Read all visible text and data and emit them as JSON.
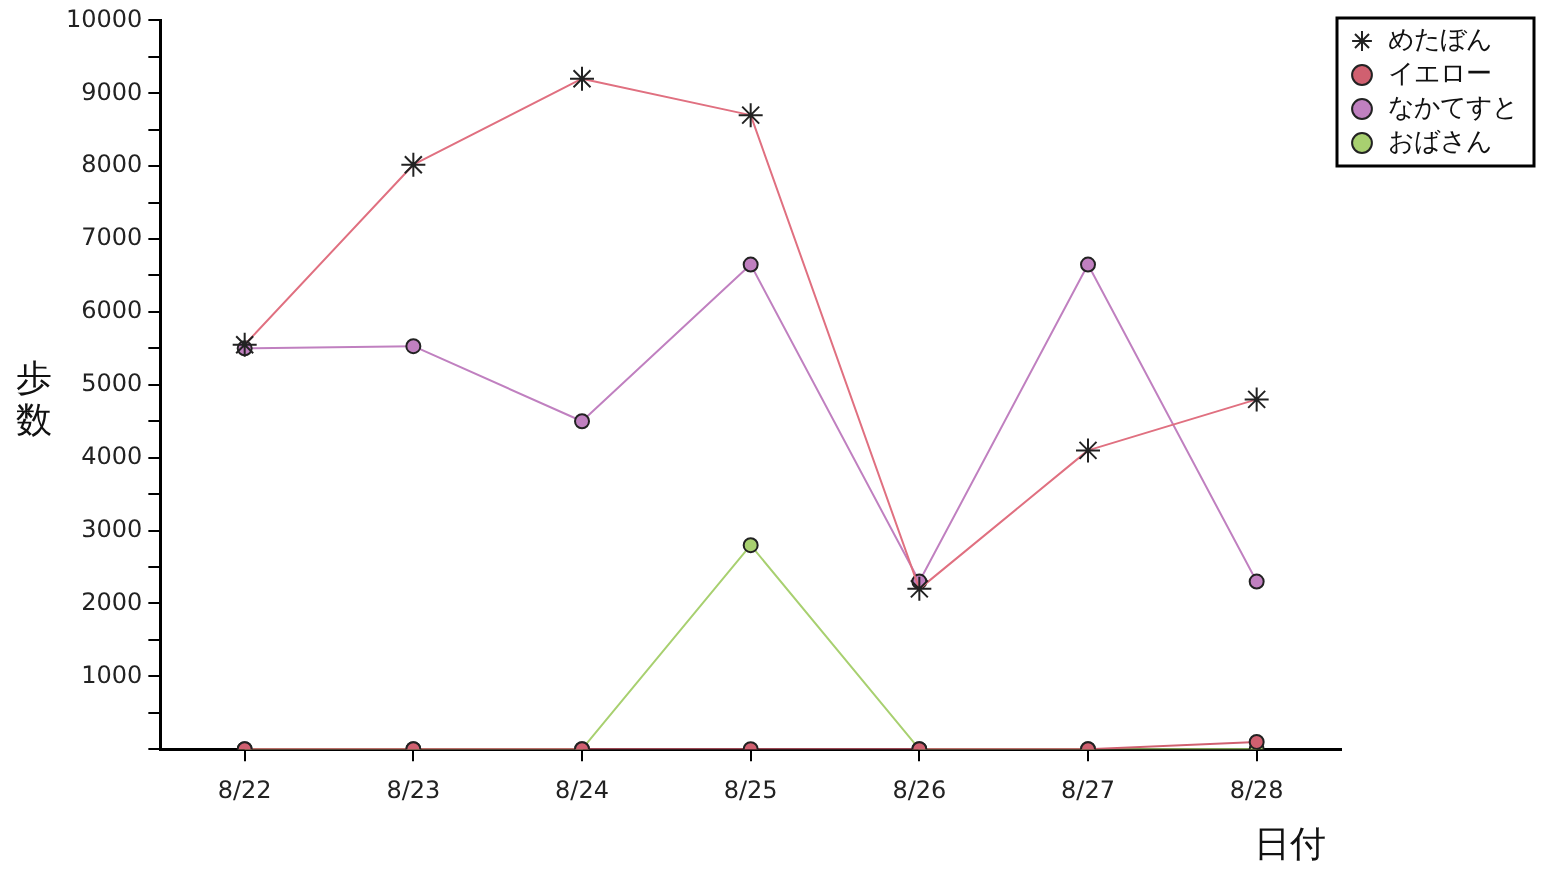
{
  "chart_data": {
    "type": "line",
    "xlabel": "日付",
    "ylabel": "歩数",
    "categories": [
      "8/22",
      "8/23",
      "8/24",
      "8/25",
      "8/26",
      "8/27",
      "8/28"
    ],
    "series": [
      {
        "name": "めたぼん",
        "color": "#e07080",
        "marker": "cross",
        "values": [
          5550,
          8020,
          9200,
          8700,
          2200,
          4100,
          4800
        ]
      },
      {
        "name": "イエロー",
        "color": "#d06070",
        "marker": "circle",
        "values": [
          0,
          0,
          0,
          0,
          0,
          0,
          100
        ]
      },
      {
        "name": "なかてすと",
        "color": "#c080c0",
        "marker": "circle",
        "values": [
          5500,
          5530,
          4500,
          6650,
          2300,
          6650,
          2300
        ]
      },
      {
        "name": "おばさん",
        "color": "#a8d070",
        "marker": "circle",
        "values": [
          0,
          0,
          0,
          2800,
          0,
          0,
          0
        ]
      }
    ],
    "ylim": [
      0,
      10000
    ],
    "yticks": [
      {
        "value": 0,
        "label": null
      },
      {
        "value": 500,
        "label": null
      },
      1000,
      {
        "value": 1500,
        "label": null
      },
      2000,
      {
        "value": 2500,
        "label": null
      },
      3000,
      {
        "value": 3500,
        "label": null
      },
      4000,
      {
        "value": 4500,
        "label": null
      },
      5000,
      {
        "value": 5500,
        "label": null
      },
      6000,
      {
        "value": 6500,
        "label": null
      },
      7000,
      {
        "value": 7500,
        "label": null
      },
      8000,
      {
        "value": 8500,
        "label": null
      },
      9000,
      {
        "value": 9500,
        "label": null
      },
      10000
    ],
    "grid": false,
    "legend": "right",
    "line_style": "solid"
  }
}
